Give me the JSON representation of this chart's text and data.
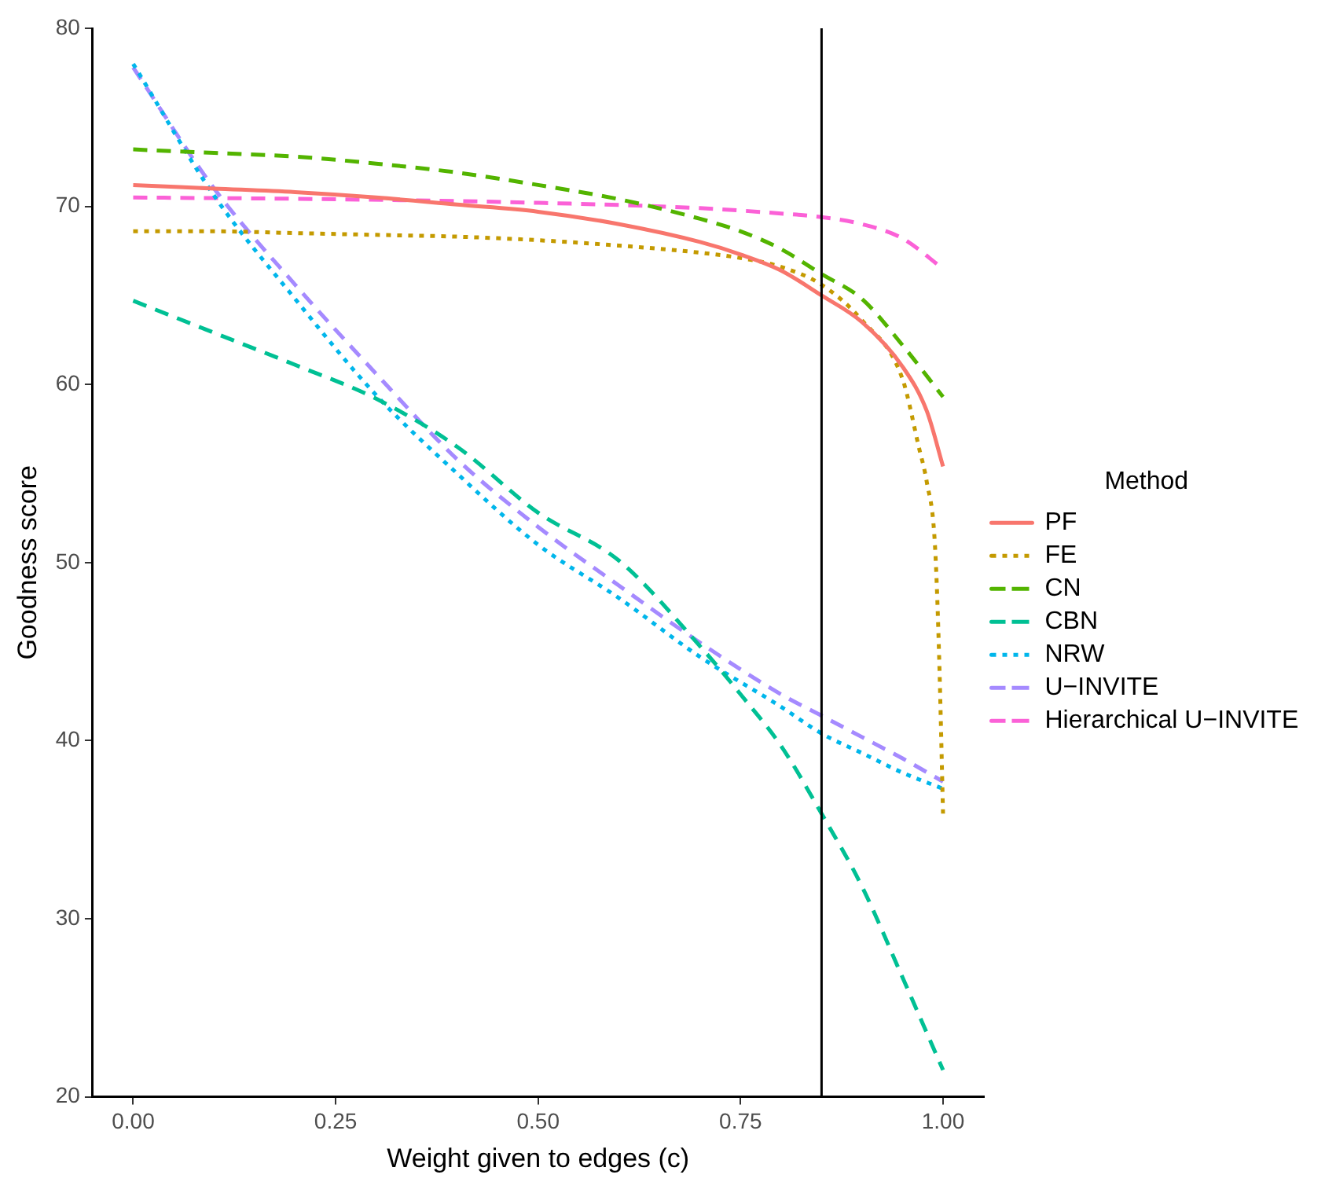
{
  "chart_data": {
    "type": "line",
    "xlabel": "Weight given to edges (c)",
    "ylabel": "Goodness score",
    "legend_title": "Method",
    "legend": "right",
    "grid": false,
    "marker": "none",
    "xlim": [
      -0.05,
      1.05
    ],
    "xticks": [
      {
        "value": 0,
        "label": "0.00"
      },
      {
        "value": 0.25,
        "label": "0.25"
      },
      {
        "value": 0.5,
        "label": "0.50"
      },
      {
        "value": 0.75,
        "label": "0.75"
      },
      {
        "value": 1,
        "label": "1.00"
      }
    ],
    "ylim": [
      20,
      80
    ],
    "yticks": [
      20,
      30,
      40,
      50,
      60,
      70,
      80
    ],
    "ref_lines": [
      {
        "axis": "x",
        "value": 0.85,
        "color": "#000000",
        "line_style": "solid"
      }
    ],
    "series": [
      {
        "name": "PF",
        "color": "#f8766d",
        "line_style": "solid",
        "x": [
          0,
          0.1,
          0.2,
          0.3,
          0.4,
          0.5,
          0.6,
          0.7,
          0.75,
          0.8,
          0.85,
          0.9,
          0.95,
          0.98,
          1.0
        ],
        "values": [
          71.2,
          71.0,
          70.8,
          70.5,
          70.1,
          69.7,
          69.0,
          68.0,
          67.3,
          66.4,
          65.0,
          63.5,
          61.0,
          58.5,
          55.4
        ]
      },
      {
        "name": "FE",
        "color": "#c49a00",
        "line_style": "dotted",
        "x": [
          0,
          0.1,
          0.2,
          0.3,
          0.4,
          0.5,
          0.6,
          0.7,
          0.75,
          0.8,
          0.85,
          0.9,
          0.95,
          0.97,
          0.98,
          0.99,
          0.995,
          1.0
        ],
        "values": [
          68.6,
          68.6,
          68.5,
          68.4,
          68.3,
          68.1,
          67.8,
          67.4,
          67.1,
          66.6,
          65.6,
          63.6,
          60.3,
          56.5,
          54.5,
          51,
          45,
          35.9
        ]
      },
      {
        "name": "CN",
        "color": "#53b400",
        "line_style": "dashed",
        "x": [
          0,
          0.1,
          0.2,
          0.3,
          0.4,
          0.5,
          0.6,
          0.7,
          0.75,
          0.8,
          0.85,
          0.9,
          0.95,
          1.0
        ],
        "values": [
          73.2,
          73.0,
          72.8,
          72.4,
          71.9,
          71.2,
          70.4,
          69.3,
          68.6,
          67.6,
          66.2,
          64.8,
          62.2,
          59.3
        ]
      },
      {
        "name": "CBN",
        "color": "#00c094",
        "line_style": "dashed",
        "x": [
          0,
          0.1,
          0.2,
          0.3,
          0.4,
          0.5,
          0.6,
          0.7,
          0.75,
          0.8,
          0.85,
          0.9,
          0.95,
          1.0
        ],
        "values": [
          64.7,
          62.9,
          61.1,
          59.2,
          56.5,
          52.8,
          50.1,
          45.3,
          42.6,
          39.7,
          35.9,
          31.8,
          26.7,
          21.5
        ]
      },
      {
        "name": "NRW",
        "color": "#00b6eb",
        "line_style": "dotted",
        "x": [
          0,
          0.1,
          0.2,
          0.3,
          0.4,
          0.5,
          0.6,
          0.7,
          0.8,
          0.85,
          0.9,
          0.95,
          1.0
        ],
        "values": [
          78.0,
          70.6,
          64.8,
          59.4,
          55.0,
          51.0,
          48.0,
          44.7,
          41.9,
          40.4,
          39.3,
          38.2,
          37.3
        ]
      },
      {
        "name": "U−INVITE",
        "color": "#a58aff",
        "line_style": "dashed",
        "x": [
          0,
          0.1,
          0.2,
          0.3,
          0.4,
          0.5,
          0.6,
          0.7,
          0.8,
          0.85,
          0.9,
          0.95,
          1.0
        ],
        "values": [
          77.8,
          71.0,
          65.6,
          60.6,
          55.8,
          52.0,
          48.7,
          45.5,
          42.6,
          41.4,
          40.2,
          39.0,
          37.7
        ]
      },
      {
        "name": "Hierarchical U−INVITE",
        "color": "#fb61d7",
        "line_style": "dashed",
        "x": [
          0,
          0.25,
          0.5,
          0.7,
          0.8,
          0.85,
          0.9,
          0.95,
          1.0
        ],
        "values": [
          70.5,
          70.4,
          70.2,
          69.9,
          69.6,
          69.4,
          69.0,
          68.2,
          66.5
        ]
      }
    ]
  }
}
